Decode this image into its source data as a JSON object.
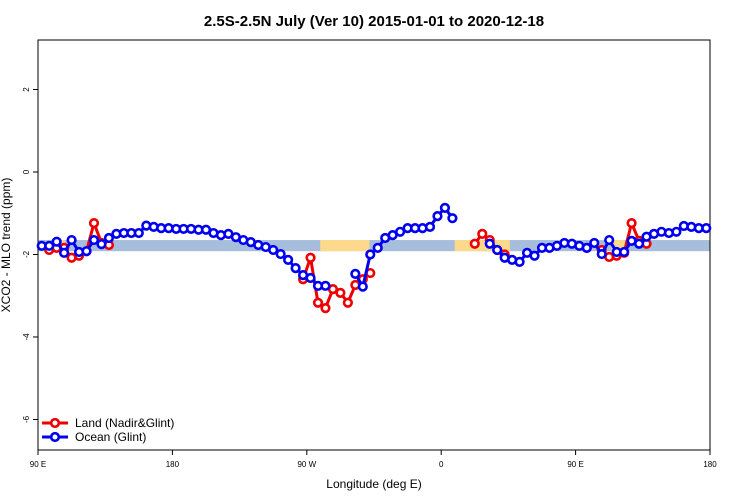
{
  "chart_data": {
    "type": "line",
    "title": "2.5S-2.5N July (Ver 10)   2015-01-01 to 2020-12-18",
    "x_label": "Longitude (deg E)",
    "y_label": "XCO2 - MLO trend (ppm)",
    "xlim": [
      90,
      540
    ],
    "ylim": [
      -6.74,
      3.2
    ],
    "xticks": [
      {
        "value": 90,
        "label": "90 E"
      },
      180,
      {
        "value": 270,
        "label": "90 W"
      },
      {
        "value": 360,
        "label": "0"
      },
      {
        "value": 450,
        "label": "90 E"
      },
      {
        "value": 540,
        "label": "180"
      }
    ],
    "yticks": [
      -6,
      -4,
      -2,
      0,
      2
    ],
    "legend": "bottom-left",
    "band": {
      "y": [
        -1.92,
        -1.65
      ],
      "color": "#a6bddb",
      "highlights": [
        {
          "x": [
            101,
            108
          ],
          "color": "#fdd98b"
        },
        {
          "x": [
            279,
            312
          ],
          "color": "#fdd98b"
        },
        {
          "x": [
            369,
            406
          ],
          "color": "#fdd98b"
        },
        {
          "x": [
            474,
            483
          ],
          "color": "#fdd98b"
        }
      ]
    },
    "x": [
      92.5,
      97.5,
      102.5,
      107.5,
      112.5,
      117.5,
      122.5,
      127.5,
      132.5,
      137.5,
      142.5,
      147.5,
      152.5,
      157.5,
      162.5,
      167.5,
      172.5,
      177.5,
      182.5,
      187.5,
      192.5,
      197.5,
      202.5,
      207.5,
      212.5,
      217.5,
      222.5,
      227.5,
      232.5,
      237.5,
      242.5,
      247.5,
      252.5,
      257.5,
      262.5,
      267.5,
      272.5,
      277.5,
      282.5,
      287.5,
      292.5,
      297.5,
      302.5,
      307.5,
      312.5,
      317.5,
      322.5,
      327.5,
      332.5,
      337.5,
      342.5,
      347.5,
      352.5,
      357.5,
      362.5,
      367.5,
      372.5,
      377.5,
      382.5,
      387.5,
      392.5,
      397.5,
      402.5,
      407.5,
      412.5,
      417.5,
      422.5,
      427.5,
      432.5,
      437.5,
      442.5,
      447.5,
      452.5,
      457.5,
      462.5,
      467.5,
      472.5,
      477.5,
      482.5,
      487.5,
      492.5,
      497.5,
      502.5,
      507.5,
      512.5,
      517.5,
      522.5,
      527.5,
      532.5,
      537.5
    ],
    "series": [
      {
        "name": "Land (Nadir&Glint)",
        "color": "#ee0000",
        "values": [
          null,
          -1.89,
          -1.84,
          -1.84,
          -2.08,
          -2.03,
          -1.92,
          -1.24,
          -1.72,
          -1.77,
          null,
          null,
          null,
          null,
          null,
          null,
          null,
          null,
          null,
          null,
          null,
          null,
          null,
          null,
          null,
          null,
          null,
          null,
          null,
          null,
          null,
          null,
          null,
          null,
          null,
          -2.6,
          -2.08,
          -3.17,
          -3.3,
          -2.84,
          -2.93,
          -3.17,
          -2.74,
          -2.6,
          -2.45,
          null,
          null,
          null,
          null,
          null,
          null,
          null,
          null,
          null,
          null,
          null,
          null,
          null,
          -1.74,
          -1.5,
          -1.65,
          -1.89,
          -2.0,
          null,
          null,
          null,
          null,
          null,
          null,
          null,
          null,
          null,
          null,
          -1.84,
          null,
          -1.89,
          -2.06,
          -2.03,
          -1.96,
          -1.24,
          -1.67,
          -1.74,
          null,
          null,
          null,
          null,
          null,
          null,
          null,
          null
        ]
      },
      {
        "name": "Ocean (Glint)",
        "color": "#0000ee",
        "values": [
          -1.79,
          -1.79,
          -1.69,
          -1.96,
          -1.65,
          -1.94,
          -1.92,
          -1.65,
          -1.75,
          -1.6,
          -1.5,
          -1.48,
          -1.48,
          -1.48,
          -1.3,
          -1.33,
          -1.36,
          -1.36,
          -1.38,
          -1.38,
          -1.38,
          -1.4,
          -1.4,
          -1.48,
          -1.53,
          -1.5,
          -1.58,
          -1.65,
          -1.7,
          -1.77,
          -1.82,
          -1.89,
          -1.99,
          -2.13,
          -2.33,
          -2.5,
          -2.57,
          -2.76,
          -2.76,
          null,
          null,
          null,
          -2.47,
          -2.78,
          -2.0,
          -1.84,
          -1.6,
          -1.53,
          -1.45,
          -1.36,
          -1.36,
          -1.36,
          -1.33,
          -1.07,
          -0.87,
          -1.12,
          null,
          null,
          null,
          null,
          -1.74,
          -1.89,
          -2.08,
          -2.13,
          -2.18,
          -1.96,
          -2.03,
          -1.84,
          -1.84,
          -1.79,
          -1.72,
          -1.74,
          -1.79,
          -1.84,
          -1.72,
          -1.99,
          -1.65,
          -1.94,
          -1.94,
          -1.67,
          -1.74,
          -1.57,
          -1.5,
          -1.45,
          -1.48,
          -1.45,
          -1.31,
          -1.33,
          -1.36,
          -1.36
        ]
      }
    ]
  }
}
